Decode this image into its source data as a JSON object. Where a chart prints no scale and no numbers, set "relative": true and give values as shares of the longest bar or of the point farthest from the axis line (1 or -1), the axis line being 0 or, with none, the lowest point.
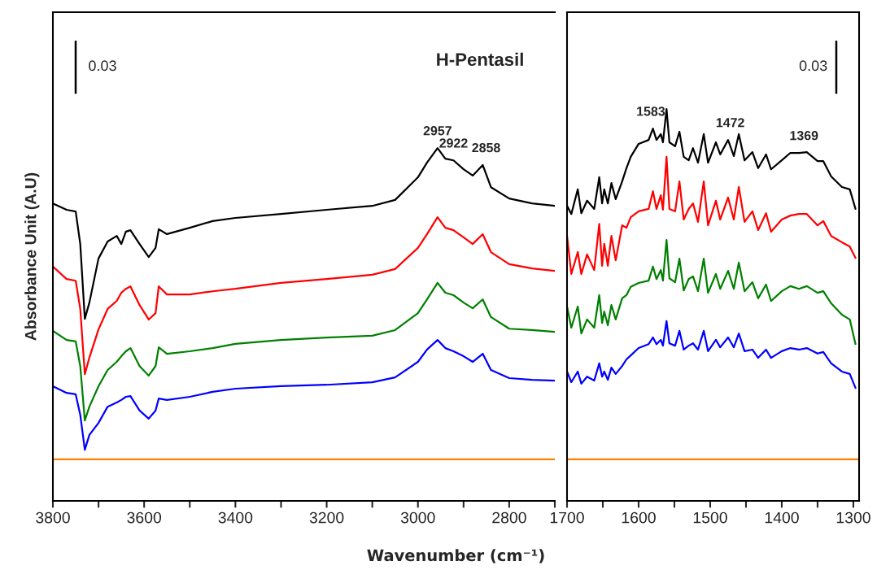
{
  "chart_data": [
    {
      "type": "line",
      "title": "H-Pentasil",
      "xlabel": "Wavenumber (cm⁻¹)",
      "ylabel": "Absorbance Unit (A.U)",
      "relative": true,
      "tick_labels": "x",
      "grid": false,
      "legend": false,
      "xlim": [
        3800,
        2700
      ],
      "xticks": [
        3800,
        {
          "value": 3700,
          "label": null
        },
        3600,
        {
          "value": 3500,
          "label": null
        },
        3400,
        {
          "value": 3300,
          "label": null
        },
        3200,
        {
          "value": 3100,
          "label": null
        },
        3000,
        {
          "value": 2900,
          "label": null
        },
        2800,
        {
          "value": 2700,
          "label": null
        }
      ],
      "annotations": [
        "0.03",
        {
          "text": "2957",
          "x": 2957,
          "y": 1.0
        },
        {
          "text": "2922",
          "x": 2922,
          "y": 0.965
        },
        {
          "text": "2858",
          "x": 2858,
          "y": 0.952
        }
      ],
      "series": [
        {
          "color": "#000000",
          "x": [
            3800,
            3770,
            3750,
            3740,
            3730,
            3720,
            3700,
            3680,
            3660,
            3650,
            3640,
            3630,
            3610,
            3590,
            3575,
            3568,
            3550,
            3500,
            3450,
            3400,
            3300,
            3200,
            3100,
            3050,
            3000,
            2980,
            2957,
            2940,
            2922,
            2900,
            2880,
            2858,
            2840,
            2800,
            2750,
            2700
          ],
          "values": [
            0.843,
            0.825,
            0.82,
            0.728,
            0.516,
            0.562,
            0.687,
            0.735,
            0.751,
            0.728,
            0.763,
            0.767,
            0.728,
            0.691,
            0.717,
            0.77,
            0.756,
            0.774,
            0.793,
            0.802,
            0.813,
            0.825,
            0.836,
            0.853,
            0.917,
            0.959,
            1,
            0.97,
            0.965,
            0.94,
            0.922,
            0.952,
            0.889,
            0.857,
            0.843,
            0.836
          ]
        },
        {
          "color": "#ff0000",
          "x": [
            3800,
            3770,
            3750,
            3740,
            3730,
            3720,
            3700,
            3680,
            3660,
            3650,
            3640,
            3630,
            3610,
            3590,
            3575,
            3568,
            3550,
            3500,
            3450,
            3400,
            3300,
            3200,
            3100,
            3050,
            3000,
            2980,
            2957,
            2940,
            2922,
            2900,
            2880,
            2858,
            2840,
            2800,
            2750,
            2700
          ],
          "values": [
            0.664,
            0.629,
            0.624,
            0.544,
            0.359,
            0.406,
            0.486,
            0.544,
            0.567,
            0.59,
            0.601,
            0.608,
            0.555,
            0.514,
            0.532,
            0.608,
            0.585,
            0.585,
            0.594,
            0.601,
            0.618,
            0.629,
            0.641,
            0.657,
            0.717,
            0.756,
            0.804,
            0.774,
            0.767,
            0.747,
            0.728,
            0.756,
            0.705,
            0.671,
            0.659,
            0.652
          ]
        },
        {
          "color": "#008000",
          "x": [
            3800,
            3770,
            3750,
            3740,
            3730,
            3720,
            3700,
            3680,
            3660,
            3650,
            3640,
            3630,
            3610,
            3590,
            3575,
            3568,
            3550,
            3500,
            3450,
            3400,
            3300,
            3200,
            3100,
            3050,
            3000,
            2980,
            2957,
            2940,
            2922,
            2900,
            2880,
            2858,
            2840,
            2800,
            2750,
            2700
          ],
          "values": [
            0.482,
            0.456,
            0.452,
            0.382,
            0.228,
            0.267,
            0.325,
            0.371,
            0.394,
            0.41,
            0.424,
            0.433,
            0.382,
            0.355,
            0.382,
            0.435,
            0.417,
            0.424,
            0.433,
            0.445,
            0.456,
            0.463,
            0.468,
            0.484,
            0.532,
            0.571,
            0.618,
            0.59,
            0.583,
            0.562,
            0.546,
            0.571,
            0.521,
            0.488,
            0.484,
            0.479
          ]
        },
        {
          "color": "#0000ff",
          "x": [
            3800,
            3770,
            3750,
            3740,
            3730,
            3720,
            3700,
            3680,
            3660,
            3650,
            3640,
            3630,
            3610,
            3590,
            3575,
            3568,
            3550,
            3500,
            3450,
            3400,
            3300,
            3200,
            3100,
            3050,
            3000,
            2980,
            2957,
            2940,
            2922,
            2900,
            2880,
            2858,
            2840,
            2800,
            2750,
            2700
          ],
          "values": [
            0.325,
            0.306,
            0.302,
            0.244,
            0.145,
            0.187,
            0.221,
            0.267,
            0.279,
            0.286,
            0.295,
            0.297,
            0.256,
            0.233,
            0.256,
            0.29,
            0.286,
            0.295,
            0.309,
            0.318,
            0.325,
            0.329,
            0.336,
            0.35,
            0.394,
            0.429,
            0.456,
            0.433,
            0.424,
            0.41,
            0.394,
            0.417,
            0.371,
            0.348,
            0.343,
            0.341
          ]
        },
        {
          "color": "#ff8000",
          "x": [
            3800,
            2700
          ],
          "values": [
            0.118,
            0.118
          ]
        }
      ]
    },
    {
      "type": "line",
      "relative": true,
      "tick_labels": "x",
      "grid": false,
      "legend": false,
      "xlim": [
        1700,
        1292
      ],
      "xticks": [
        1700,
        {
          "value": 1650,
          "label": null
        },
        1600,
        {
          "value": 1550,
          "label": null
        },
        1500,
        {
          "value": 1450,
          "label": null
        },
        1400,
        {
          "value": 1350,
          "label": null
        },
        1300
      ],
      "annotations": [
        "0.03",
        {
          "text": "1583",
          "x": 1583,
          "y": 0.95
        },
        {
          "text": "1472",
          "x": 1472,
          "y": 0.921
        },
        {
          "text": "1369",
          "x": 1369,
          "y": 0.888
        }
      ],
      "series": [
        {
          "color": "#000000",
          "x": [
            1700,
            1694,
            1685,
            1680,
            1672,
            1662,
            1655,
            1651,
            1648,
            1643,
            1638,
            1632,
            1623,
            1617,
            1611,
            1600,
            1586,
            1580,
            1575,
            1569,
            1566,
            1561,
            1557,
            1549,
            1543,
            1537,
            1530,
            1524,
            1517,
            1509,
            1503,
            1492,
            1486,
            1475,
            1467,
            1460,
            1452,
            1441,
            1433,
            1422,
            1415,
            1400,
            1388,
            1376,
            1365,
            1350,
            1342,
            1331,
            1316,
            1305,
            1297
          ],
          "values": [
            0.753,
            0.732,
            0.795,
            0.734,
            0.766,
            0.745,
            0.826,
            0.759,
            0.795,
            0.759,
            0.811,
            0.77,
            0.815,
            0.849,
            0.878,
            0.911,
            0.921,
            0.95,
            0.921,
            0.936,
            0.915,
            1,
            0.915,
            0.905,
            0.942,
            0.878,
            0.869,
            0.9,
            0.863,
            0.936,
            0.863,
            0.915,
            0.884,
            0.921,
            0.88,
            0.936,
            0.869,
            0.89,
            0.849,
            0.884,
            0.846,
            0.869,
            0.888,
            0.888,
            0.89,
            0.867,
            0.867,
            0.828,
            0.801,
            0.795,
            0.745
          ]
        },
        {
          "color": "#ff0000",
          "x": [
            1700,
            1694,
            1685,
            1680,
            1672,
            1662,
            1655,
            1651,
            1648,
            1643,
            1638,
            1632,
            1623,
            1617,
            1611,
            1600,
            1586,
            1580,
            1575,
            1569,
            1566,
            1561,
            1557,
            1549,
            1543,
            1537,
            1530,
            1524,
            1517,
            1509,
            1503,
            1492,
            1486,
            1475,
            1467,
            1460,
            1452,
            1441,
            1433,
            1422,
            1415,
            1400,
            1388,
            1376,
            1365,
            1350,
            1342,
            1331,
            1316,
            1305,
            1297
          ],
          "values": [
            0.676,
            0.579,
            0.635,
            0.579,
            0.629,
            0.589,
            0.707,
            0.6,
            0.656,
            0.6,
            0.676,
            0.614,
            0.703,
            0.697,
            0.724,
            0.739,
            0.745,
            0.79,
            0.745,
            0.78,
            0.743,
            0.878,
            0.745,
            0.739,
            0.815,
            0.718,
            0.745,
            0.759,
            0.712,
            0.815,
            0.703,
            0.766,
            0.718,
            0.774,
            0.718,
            0.801,
            0.712,
            0.739,
            0.691,
            0.734,
            0.687,
            0.718,
            0.728,
            0.732,
            0.732,
            0.703,
            0.714,
            0.676,
            0.66,
            0.649,
            0.62
          ]
        },
        {
          "color": "#008000",
          "x": [
            1700,
            1694,
            1685,
            1680,
            1672,
            1662,
            1655,
            1651,
            1648,
            1643,
            1638,
            1632,
            1623,
            1617,
            1611,
            1600,
            1586,
            1580,
            1575,
            1569,
            1566,
            1561,
            1557,
            1549,
            1543,
            1537,
            1530,
            1524,
            1517,
            1509,
            1503,
            1492,
            1486,
            1475,
            1467,
            1460,
            1452,
            1441,
            1433,
            1422,
            1415,
            1400,
            1388,
            1376,
            1365,
            1350,
            1342,
            1331,
            1316,
            1305,
            1297
          ],
          "values": [
            0.496,
            0.442,
            0.496,
            0.427,
            0.463,
            0.442,
            0.525,
            0.454,
            0.483,
            0.448,
            0.5,
            0.463,
            0.517,
            0.525,
            0.546,
            0.556,
            0.562,
            0.598,
            0.566,
            0.589,
            0.562,
            0.666,
            0.568,
            0.558,
            0.618,
            0.537,
            0.566,
            0.573,
            0.535,
            0.618,
            0.531,
            0.579,
            0.541,
            0.587,
            0.541,
            0.608,
            0.535,
            0.558,
            0.517,
            0.552,
            0.51,
            0.535,
            0.548,
            0.541,
            0.548,
            0.531,
            0.535,
            0.504,
            0.475,
            0.463,
            0.4
          ]
        },
        {
          "color": "#0000ff",
          "x": [
            1700,
            1694,
            1685,
            1680,
            1672,
            1662,
            1655,
            1651,
            1648,
            1643,
            1638,
            1632,
            1623,
            1617,
            1611,
            1600,
            1586,
            1580,
            1575,
            1569,
            1566,
            1561,
            1557,
            1549,
            1543,
            1537,
            1530,
            1524,
            1517,
            1509,
            1503,
            1492,
            1486,
            1475,
            1467,
            1460,
            1452,
            1441,
            1433,
            1422,
            1415,
            1400,
            1388,
            1376,
            1365,
            1350,
            1342,
            1331,
            1316,
            1305,
            1297
          ],
          "values": [
            0.33,
            0.303,
            0.33,
            0.299,
            0.317,
            0.307,
            0.351,
            0.317,
            0.33,
            0.309,
            0.34,
            0.324,
            0.344,
            0.361,
            0.371,
            0.39,
            0.4,
            0.417,
            0.4,
            0.411,
            0.396,
            0.459,
            0.402,
            0.396,
            0.434,
            0.386,
            0.396,
            0.402,
            0.386,
            0.434,
            0.382,
            0.411,
            0.392,
            0.417,
            0.392,
            0.427,
            0.382,
            0.386,
            0.365,
            0.386,
            0.365,
            0.382,
            0.39,
            0.386,
            0.39,
            0.376,
            0.38,
            0.351,
            0.33,
            0.324,
            0.288
          ]
        },
        {
          "color": "#ff8000",
          "x": [
            1700,
            1292
          ],
          "values": [
            0.106,
            0.106
          ]
        }
      ]
    }
  ]
}
